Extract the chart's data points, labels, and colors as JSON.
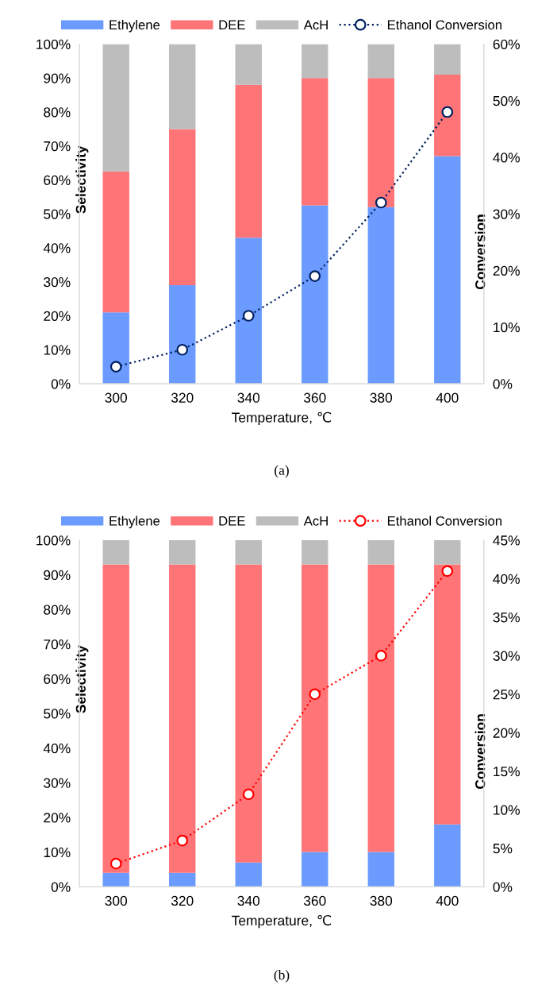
{
  "chart_data": [
    {
      "type": "bar",
      "stacked": true,
      "categories": [
        "300",
        "320",
        "340",
        "360",
        "380",
        "400"
      ],
      "xlabel": "Temperature, ℃",
      "ylabel": "Selectivity",
      "y2label": "Conversion",
      "ylim": [
        0,
        100
      ],
      "yticks": [
        {
          "value": 0,
          "label": "0%"
        },
        {
          "value": 10,
          "label": "10%"
        },
        {
          "value": 20,
          "label": "20%"
        },
        {
          "value": 30,
          "label": "30%"
        },
        {
          "value": 40,
          "label": "40%"
        },
        {
          "value": 50,
          "label": "50%"
        },
        {
          "value": 60,
          "label": "60%"
        },
        {
          "value": 70,
          "label": "70%"
        },
        {
          "value": 80,
          "label": "80%"
        },
        {
          "value": 90,
          "label": "90%"
        },
        {
          "value": 100,
          "label": "100%"
        }
      ],
      "y2lim": [
        0,
        60
      ],
      "y2ticks": [
        {
          "value": 0,
          "label": "0%"
        },
        {
          "value": 10,
          "label": "10%"
        },
        {
          "value": 20,
          "label": "20%"
        },
        {
          "value": 30,
          "label": "30%"
        },
        {
          "value": 40,
          "label": "40%"
        },
        {
          "value": 50,
          "label": "50%"
        },
        {
          "value": 60,
          "label": "60%"
        }
      ],
      "legend": "top",
      "grid": false,
      "annotations": [
        "(a)"
      ],
      "series": [
        {
          "name": "Ethylene",
          "color": "#6b9bff",
          "values": [
            21,
            29,
            43,
            52.5,
            52,
            67
          ]
        },
        {
          "name": "DEE",
          "color": "#ff7477",
          "values": [
            41.5,
            46,
            45,
            37.5,
            38,
            24
          ]
        },
        {
          "name": "AcH",
          "color": "#bdbdbd",
          "values": [
            37.5,
            25,
            12,
            10,
            10,
            9
          ]
        },
        {
          "name": "Ethanol Conversion",
          "type": "line",
          "axis": "y2",
          "color": "#002060",
          "marker": "circle",
          "line_style": "dotted",
          "values": [
            3,
            6,
            12,
            19,
            32,
            48
          ]
        }
      ]
    },
    {
      "type": "bar",
      "stacked": true,
      "categories": [
        "300",
        "320",
        "340",
        "360",
        "380",
        "400"
      ],
      "xlabel": "Temperature, ℃",
      "ylabel": "Selectivity",
      "y2label": "Conversion",
      "ylim": [
        0,
        100
      ],
      "yticks": [
        {
          "value": 0,
          "label": "0%"
        },
        {
          "value": 10,
          "label": "10%"
        },
        {
          "value": 20,
          "label": "20%"
        },
        {
          "value": 30,
          "label": "30%"
        },
        {
          "value": 40,
          "label": "40%"
        },
        {
          "value": 50,
          "label": "50%"
        },
        {
          "value": 60,
          "label": "60%"
        },
        {
          "value": 70,
          "label": "70%"
        },
        {
          "value": 80,
          "label": "80%"
        },
        {
          "value": 90,
          "label": "90%"
        },
        {
          "value": 100,
          "label": "100%"
        }
      ],
      "y2lim": [
        0,
        45
      ],
      "y2ticks": [
        {
          "value": 0,
          "label": "0%"
        },
        {
          "value": 5,
          "label": "5%"
        },
        {
          "value": 10,
          "label": "10%"
        },
        {
          "value": 15,
          "label": "15%"
        },
        {
          "value": 20,
          "label": "20%"
        },
        {
          "value": 25,
          "label": "25%"
        },
        {
          "value": 30,
          "label": "30%"
        },
        {
          "value": 35,
          "label": "35%"
        },
        {
          "value": 40,
          "label": "40%"
        },
        {
          "value": 45,
          "label": "45%"
        }
      ],
      "legend": "top",
      "grid": false,
      "annotations": [
        "(b)"
      ],
      "series": [
        {
          "name": "Ethylene",
          "color": "#6b9bff",
          "values": [
            4,
            4,
            7,
            10,
            10,
            18
          ]
        },
        {
          "name": "DEE",
          "color": "#ff7477",
          "values": [
            89,
            89,
            86,
            83,
            83,
            75
          ]
        },
        {
          "name": "AcH",
          "color": "#bdbdbd",
          "values": [
            7,
            7,
            7,
            7,
            7,
            7
          ]
        },
        {
          "name": "Ethanol Conversion",
          "type": "line",
          "axis": "y2",
          "color": "#ff0000",
          "marker": "circle",
          "line_style": "dotted",
          "values": [
            3,
            6,
            12,
            25,
            30,
            41
          ]
        }
      ]
    }
  ]
}
